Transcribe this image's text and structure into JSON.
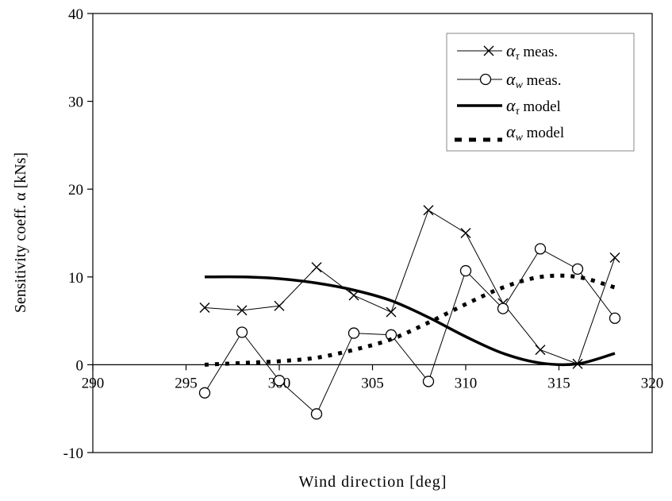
{
  "chart_data": {
    "type": "line",
    "xlabel": "Wind direction [deg]",
    "ylabel": "Sensitivity coeff.  α [kNs]",
    "xlim": [
      290,
      320
    ],
    "ylim": [
      -10,
      40
    ],
    "x_ticks": [
      "290",
      "295",
      "300",
      "305",
      "310",
      "315",
      "320"
    ],
    "y_ticks": [
      "-10",
      "0",
      "10",
      "20",
      "30",
      "40"
    ],
    "grid": false,
    "legend_position": "top-right",
    "series": [
      {
        "name": "α_τ meas.",
        "symbol": "α",
        "subscript": "τ",
        "suffix": " meas.",
        "style": "thin-cross",
        "x": [
          296,
          298,
          300,
          302,
          304,
          306,
          308,
          310,
          312,
          314,
          316,
          318
        ],
        "y": [
          6.5,
          6.2,
          6.7,
          11.1,
          7.9,
          6.0,
          17.6,
          15.0,
          7.0,
          1.7,
          0.1,
          12.2
        ]
      },
      {
        "name": "α_w meas.",
        "symbol": "α",
        "subscript": "w",
        "suffix": " meas.",
        "style": "thin-circle",
        "x": [
          296,
          298,
          300,
          302,
          304,
          306,
          308,
          310,
          312,
          314,
          316,
          318
        ],
        "y": [
          -3.2,
          3.7,
          -1.8,
          -5.6,
          3.6,
          3.4,
          -1.9,
          10.7,
          6.4,
          13.2,
          10.9,
          5.3
        ]
      },
      {
        "name": "α_τ model",
        "symbol": "α",
        "subscript": "τ",
        "suffix": " model",
        "style": "thick-solid",
        "x": [
          296,
          298,
          300,
          302,
          304,
          306,
          308,
          310,
          312,
          314,
          316,
          318
        ],
        "y": [
          10.0,
          10.0,
          9.8,
          9.3,
          8.5,
          7.3,
          5.4,
          3.2,
          1.3,
          0.2,
          0.1,
          1.3
        ]
      },
      {
        "name": "α_w model",
        "symbol": "α",
        "subscript": "w",
        "suffix": " model",
        "style": "thick-dotted",
        "x": [
          296,
          298,
          300,
          302,
          304,
          306,
          308,
          310,
          312,
          314,
          316,
          318
        ],
        "y": [
          0.0,
          0.2,
          0.4,
          0.8,
          1.7,
          2.9,
          4.8,
          6.9,
          8.8,
          10.0,
          10.0,
          8.8
        ]
      }
    ]
  }
}
